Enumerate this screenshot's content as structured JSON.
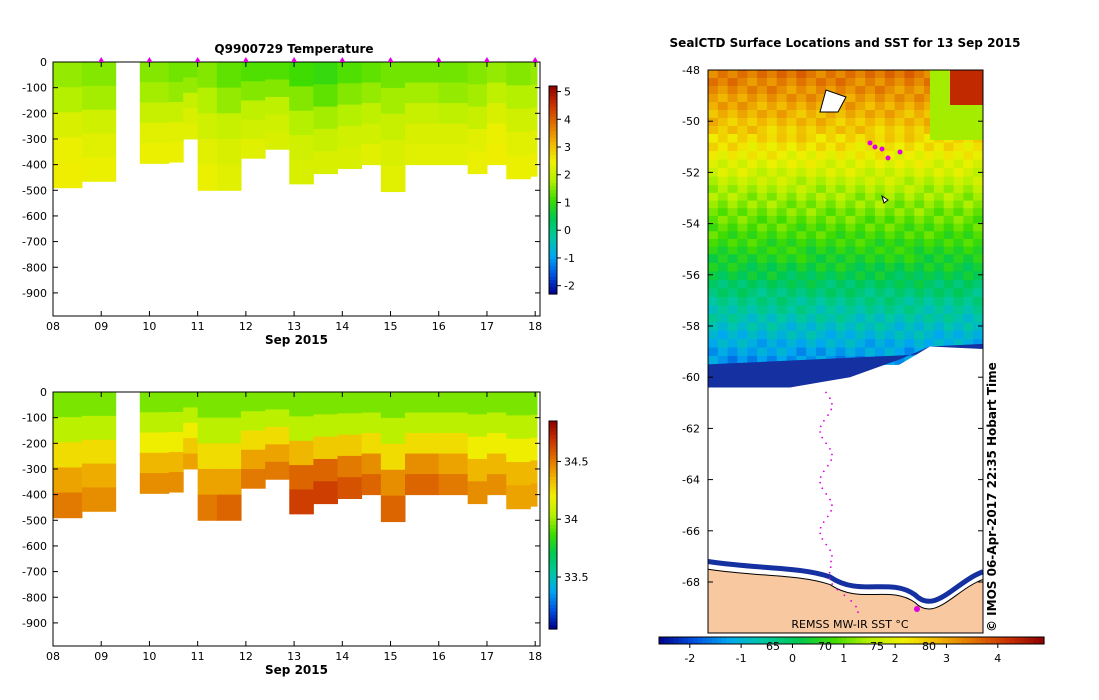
{
  "chart_data": [
    {
      "type": "heatmap",
      "title": "Q9900729  Temperature",
      "xlabel": "Sep 2015",
      "ylabel": "",
      "x_ticks": [
        "08",
        "09",
        "10",
        "11",
        "12",
        "13",
        "14",
        "15",
        "16",
        "17",
        "18"
      ],
      "x_range": [
        8,
        18.1
      ],
      "y_ticks": [
        "0",
        "-100",
        "-200",
        "-300",
        "-400",
        "-500",
        "-600",
        "-700",
        "-800",
        "-900"
      ],
      "y_range": [
        -990,
        0
      ],
      "colorbar_ticks": [
        "5",
        "4",
        "3",
        "2",
        "1",
        "0",
        "-1",
        "-2"
      ],
      "colorbar_range": [
        -2.3,
        5.2
      ],
      "colors": [
        "#00008c",
        "#0050e0",
        "#00a8f0",
        "#00c8a0",
        "#00c850",
        "#40dc00",
        "#b4f000",
        "#f0f000",
        "#f0b400",
        "#e07000",
        "#c83000",
        "#8c0000"
      ],
      "profiles": [
        {
          "day": 8.0,
          "max_depth": -490,
          "t": [
            1.6,
            1.8,
            2.2,
            2.4,
            2.5
          ]
        },
        {
          "day": 8.6,
          "max_depth": -465,
          "t": [
            1.5,
            1.7,
            2.1,
            2.3,
            2.4
          ]
        },
        {
          "day": 9.8,
          "max_depth": -395,
          "t": [
            1.5,
            1.7,
            2.0,
            2.3,
            2.4
          ]
        },
        {
          "day": 10.4,
          "max_depth": -390,
          "t": [
            1.4,
            1.6,
            2.0,
            2.3,
            2.4
          ]
        },
        {
          "day": 10.7,
          "max_depth": -300,
          "t": [
            1.4,
            1.6,
            2.0,
            2.2,
            2.3
          ]
        },
        {
          "day": 11.0,
          "max_depth": -500,
          "t": [
            1.5,
            1.8,
            2.1,
            2.3,
            2.4
          ]
        },
        {
          "day": 11.4,
          "max_depth": -500,
          "t": [
            1.3,
            1.6,
            2.0,
            2.2,
            2.3
          ]
        },
        {
          "day": 11.9,
          "max_depth": -375,
          "t": [
            1.2,
            1.5,
            1.9,
            2.1,
            2.3
          ]
        },
        {
          "day": 12.4,
          "max_depth": -340,
          "t": [
            1.2,
            1.5,
            1.9,
            2.1,
            2.2
          ]
        },
        {
          "day": 12.9,
          "max_depth": -475,
          "t": [
            1.1,
            1.5,
            1.8,
            2.1,
            2.2
          ]
        },
        {
          "day": 13.4,
          "max_depth": -435,
          "t": [
            1.0,
            1.3,
            1.7,
            2.0,
            2.2
          ]
        },
        {
          "day": 13.9,
          "max_depth": -415,
          "t": [
            1.2,
            1.5,
            1.8,
            2.1,
            2.2
          ]
        },
        {
          "day": 14.4,
          "max_depth": -400,
          "t": [
            1.3,
            1.6,
            1.9,
            2.1,
            2.3
          ]
        },
        {
          "day": 14.8,
          "max_depth": -505,
          "t": [
            1.4,
            1.7,
            2.0,
            2.2,
            2.3
          ]
        },
        {
          "day": 15.3,
          "max_depth": -400,
          "t": [
            1.4,
            1.7,
            2.0,
            2.2,
            2.3
          ]
        },
        {
          "day": 16.0,
          "max_depth": -400,
          "t": [
            1.4,
            1.6,
            1.9,
            2.2,
            2.3
          ]
        },
        {
          "day": 16.6,
          "max_depth": -435,
          "t": [
            1.5,
            1.7,
            2.0,
            2.3,
            2.4
          ]
        },
        {
          "day": 17.0,
          "max_depth": -400,
          "t": [
            1.6,
            1.9,
            2.2,
            2.4,
            2.5
          ]
        },
        {
          "day": 17.4,
          "max_depth": -455,
          "t": [
            1.5,
            1.8,
            2.1,
            2.3,
            2.4
          ]
        },
        {
          "day": 17.9,
          "max_depth": -445,
          "t": [
            1.6,
            1.8,
            2.1,
            2.3,
            2.4
          ]
        }
      ],
      "gap": [
        9.3,
        9.8
      ],
      "surface_markers": [
        9,
        10,
        11,
        12,
        13,
        14,
        15,
        16,
        17,
        18
      ]
    },
    {
      "type": "heatmap",
      "title": "",
      "xlabel": "Sep 2015",
      "ylabel": "",
      "x_ticks": [
        "08",
        "09",
        "10",
        "11",
        "12",
        "13",
        "14",
        "15",
        "16",
        "17",
        "18"
      ],
      "x_range": [
        8,
        18.1
      ],
      "y_ticks": [
        "0",
        "-100",
        "-200",
        "-300",
        "-400",
        "-500",
        "-600",
        "-700",
        "-800",
        "-900"
      ],
      "y_range": [
        -990,
        0
      ],
      "colorbar_ticks": [
        "34.5",
        "34",
        "33.5"
      ],
      "colorbar_range": [
        33.05,
        34.85
      ],
      "colors": [
        "#00008c",
        "#0050e0",
        "#00a8f0",
        "#00c8a0",
        "#00c850",
        "#40dc00",
        "#b4f000",
        "#f0f000",
        "#f0b400",
        "#e07000",
        "#c83000",
        "#8c0000"
      ],
      "profiles": [
        {
          "day": 8.0,
          "max_depth": -490,
          "s": [
            33.95,
            34.05,
            34.25,
            34.4,
            34.5
          ]
        },
        {
          "day": 8.6,
          "max_depth": -465,
          "s": [
            33.95,
            34.05,
            34.25,
            34.38,
            34.45
          ]
        },
        {
          "day": 9.8,
          "max_depth": -395,
          "s": [
            33.95,
            34.05,
            34.2,
            34.35,
            34.45
          ]
        },
        {
          "day": 10.4,
          "max_depth": -390,
          "s": [
            33.95,
            34.05,
            34.2,
            34.35,
            34.45
          ]
        },
        {
          "day": 10.7,
          "max_depth": -300,
          "s": [
            33.95,
            34.05,
            34.2,
            34.3,
            34.4
          ]
        },
        {
          "day": 11.0,
          "max_depth": -500,
          "s": [
            33.95,
            34.05,
            34.25,
            34.4,
            34.5
          ]
        },
        {
          "day": 11.4,
          "max_depth": -500,
          "s": [
            33.95,
            34.05,
            34.25,
            34.4,
            34.55
          ]
        },
        {
          "day": 11.9,
          "max_depth": -375,
          "s": [
            33.95,
            34.05,
            34.25,
            34.4,
            34.5
          ]
        },
        {
          "day": 12.4,
          "max_depth": -340,
          "s": [
            33.95,
            34.05,
            34.25,
            34.4,
            34.5
          ]
        },
        {
          "day": 12.9,
          "max_depth": -475,
          "s": [
            33.95,
            34.05,
            34.35,
            34.55,
            34.65
          ]
        },
        {
          "day": 13.4,
          "max_depth": -435,
          "s": [
            33.95,
            34.05,
            34.3,
            34.55,
            34.65
          ]
        },
        {
          "day": 13.9,
          "max_depth": -415,
          "s": [
            33.95,
            34.05,
            34.3,
            34.5,
            34.6
          ]
        },
        {
          "day": 14.4,
          "max_depth": -400,
          "s": [
            33.95,
            34.05,
            34.25,
            34.45,
            34.55
          ]
        },
        {
          "day": 14.8,
          "max_depth": -505,
          "s": [
            33.95,
            34.05,
            34.25,
            34.45,
            34.55
          ]
        },
        {
          "day": 15.3,
          "max_depth": -400,
          "s": [
            33.95,
            34.05,
            34.25,
            34.45,
            34.55
          ]
        },
        {
          "day": 16.0,
          "max_depth": -400,
          "s": [
            33.95,
            34.05,
            34.25,
            34.4,
            34.5
          ]
        },
        {
          "day": 16.6,
          "max_depth": -435,
          "s": [
            33.95,
            34.05,
            34.2,
            34.35,
            34.45
          ]
        },
        {
          "day": 17.0,
          "max_depth": -400,
          "s": [
            33.95,
            34.05,
            34.2,
            34.35,
            34.45
          ]
        },
        {
          "day": 17.4,
          "max_depth": -455,
          "s": [
            33.95,
            34.05,
            34.2,
            34.35,
            34.4
          ]
        },
        {
          "day": 17.9,
          "max_depth": -445,
          "s": [
            33.95,
            34.05,
            34.2,
            34.35,
            34.4
          ]
        }
      ],
      "gap": [
        9.3,
        9.8
      ]
    },
    {
      "type": "heatmap",
      "title": "SealCTD Surface Locations and SST for 13 Sep 2015",
      "y_ticks": [
        "-48",
        "-50",
        "-52",
        "-54",
        "-56",
        "-58",
        "-60",
        "-62",
        "-64",
        "-66",
        "-68"
      ],
      "y_range": [
        -70.5,
        -48
      ],
      "colorbar_label": "REMSS MW-IR SST °C",
      "colorbar_ticks": [
        "-2",
        "-1",
        "0",
        "1",
        "2",
        "3",
        "4"
      ],
      "colorbar_range": [
        -2.6,
        4.9
      ],
      "colorbar_ticks_secondary": [
        "65",
        "70",
        "75",
        "80"
      ],
      "credit": "©  IMOS 06-Apr-2017 22:35 Hobart Time",
      "sst_bands": [
        {
          "lat_top": -48,
          "lat_bot": -50.5,
          "sst": 3.0
        },
        {
          "lat_top": -50.5,
          "lat_bot": -52.5,
          "sst": 2.0
        },
        {
          "lat_top": -52.5,
          "lat_bot": -55.2,
          "sst": 1.0
        },
        {
          "lat_top": -55.2,
          "lat_bot": -57.2,
          "sst": 0.0
        },
        {
          "lat_top": -57.2,
          "lat_bot": -59.5,
          "sst": -1.0
        }
      ],
      "ice_edge_lat": -59.0,
      "land_lat": -67.5
    }
  ]
}
